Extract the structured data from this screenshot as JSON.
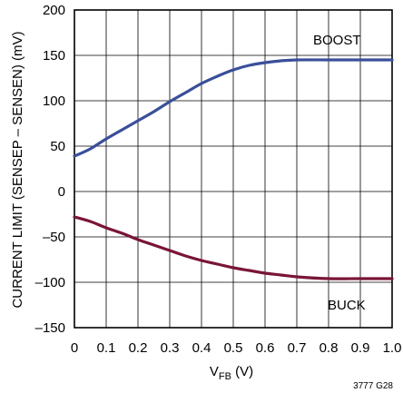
{
  "chart_data": {
    "type": "line",
    "xlabel_main": "V",
    "xlabel_sub": "FB",
    "xlabel_unit": " (V)",
    "ylabel": "CURRENT LIMIT (SENSEP – SENSEN) (mV)",
    "figure_id": "3777 G28",
    "xlim": [
      0,
      1.0
    ],
    "ylim": [
      -150,
      200
    ],
    "x_ticks": [
      "0",
      "0.1",
      "0.2",
      "0.3",
      "0.4",
      "0.5",
      "0.6",
      "0.7",
      "0.8",
      "0.9",
      "1.0"
    ],
    "y_ticks": [
      "–150",
      "–100",
      "–50",
      "0",
      "50",
      "100",
      "150",
      "200"
    ],
    "grid": true,
    "series": [
      {
        "name": "BOOST",
        "color": "#3a4f9a",
        "x": [
          0,
          0.05,
          0.1,
          0.15,
          0.2,
          0.25,
          0.3,
          0.35,
          0.4,
          0.45,
          0.5,
          0.55,
          0.6,
          0.65,
          0.7,
          0.8,
          0.9,
          1.0
        ],
        "y": [
          39,
          47,
          58,
          68,
          78,
          88,
          99,
          109,
          119,
          127,
          134,
          139,
          142,
          144,
          145,
          145,
          145,
          145
        ]
      },
      {
        "name": "BUCK",
        "color": "#7a1535",
        "x": [
          0,
          0.05,
          0.1,
          0.15,
          0.2,
          0.25,
          0.3,
          0.35,
          0.4,
          0.45,
          0.5,
          0.55,
          0.6,
          0.65,
          0.7,
          0.8,
          0.9,
          1.0
        ],
        "y": [
          -28,
          -33,
          -40,
          -46,
          -53,
          -59,
          -65,
          -71,
          -76,
          -80,
          -84,
          -87,
          -90,
          -92,
          -94,
          -96,
          -96,
          -96
        ]
      }
    ]
  }
}
